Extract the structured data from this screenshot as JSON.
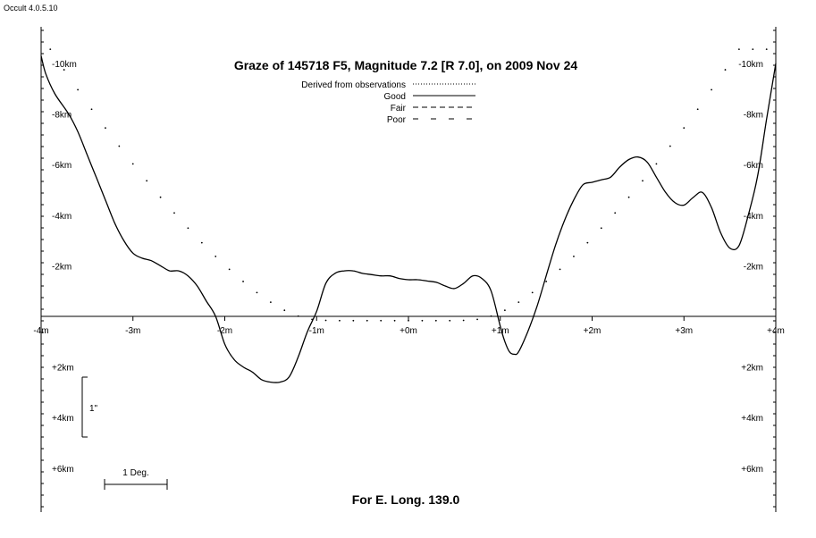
{
  "app": {
    "version_label": "Occult 4.0.5.10"
  },
  "chart_data": {
    "type": "line",
    "title": "Graze of  145718 F5,  Magnitude 7.2 [R 7.0],  on 2009 Nov 24",
    "footer": "For E. Long. 139.0",
    "x_unit": "arcmin",
    "y_unit": "km",
    "xlim": [
      -4,
      4
    ],
    "ylim": [
      -10.5,
      7.5
    ],
    "y_positive_is_down": true,
    "grid": false,
    "x_ticks": [
      {
        "value": -4,
        "label": "-4m"
      },
      {
        "value": -3,
        "label": "-3m"
      },
      {
        "value": -2,
        "label": "-2m"
      },
      {
        "value": -1,
        "label": "-1m"
      },
      {
        "value": 0,
        "label": "+0m"
      },
      {
        "value": 1,
        "label": "+1m"
      },
      {
        "value": 2,
        "label": "+2m"
      },
      {
        "value": 3,
        "label": "+3m"
      },
      {
        "value": 4,
        "label": "+4m"
      }
    ],
    "y_ticks": [
      {
        "value": -10,
        "label": "-10km"
      },
      {
        "value": -8,
        "label": "-8km"
      },
      {
        "value": -6,
        "label": "-6km"
      },
      {
        "value": -4,
        "label": "-4km"
      },
      {
        "value": -2,
        "label": "-2km"
      },
      {
        "value": 2,
        "label": "+2km"
      },
      {
        "value": 4,
        "label": "+4km"
      },
      {
        "value": 6,
        "label": "+6km"
      }
    ],
    "legend": {
      "placement": "top-center",
      "entries": [
        {
          "label": "Derived from observations",
          "style": "dotted"
        },
        {
          "label": "Good",
          "style": "solid"
        },
        {
          "label": "Fair",
          "style": "dashed"
        },
        {
          "label": "Poor",
          "style": "long-dashed"
        }
      ]
    },
    "scale_bars": {
      "vertical_label": "1\"",
      "horizontal_label": "1 Deg."
    },
    "series": [
      {
        "name": "Good",
        "style": "solid",
        "x": [
          -4.0,
          -3.95,
          -3.85,
          -3.7,
          -3.6,
          -3.5,
          -3.4,
          -3.3,
          -3.2,
          -3.1,
          -3.0,
          -2.9,
          -2.8,
          -2.7,
          -2.6,
          -2.5,
          -2.4,
          -2.3,
          -2.2,
          -2.1,
          -2.0,
          -1.9,
          -1.8,
          -1.7,
          -1.6,
          -1.5,
          -1.4,
          -1.3,
          -1.2,
          -1.1,
          -1.0,
          -0.9,
          -0.8,
          -0.7,
          -0.6,
          -0.5,
          -0.4,
          -0.3,
          -0.2,
          -0.1,
          0.0,
          0.1,
          0.2,
          0.3,
          0.4,
          0.5,
          0.6,
          0.7,
          0.8,
          0.9,
          1.0,
          1.05,
          1.1,
          1.15,
          1.2,
          1.3,
          1.4,
          1.5,
          1.6,
          1.7,
          1.8,
          1.9,
          2.0,
          2.1,
          2.2,
          2.3,
          2.4,
          2.5,
          2.6,
          2.7,
          2.8,
          2.9,
          3.0,
          3.1,
          3.2,
          3.3,
          3.4,
          3.5,
          3.6,
          3.7,
          3.8,
          3.9,
          4.0
        ],
        "y": [
          -10.3,
          -9.6,
          -8.8,
          -8.0,
          -7.3,
          -6.4,
          -5.5,
          -4.6,
          -3.7,
          -3.0,
          -2.5,
          -2.3,
          -2.2,
          -2.0,
          -1.8,
          -1.8,
          -1.6,
          -1.2,
          -0.6,
          0.0,
          1.1,
          1.7,
          2.0,
          2.2,
          2.5,
          2.6,
          2.6,
          2.4,
          1.6,
          0.6,
          -0.2,
          -1.3,
          -1.7,
          -1.8,
          -1.8,
          -1.7,
          -1.65,
          -1.6,
          -1.6,
          -1.5,
          -1.45,
          -1.45,
          -1.4,
          -1.35,
          -1.2,
          -1.1,
          -1.3,
          -1.6,
          -1.5,
          -1.0,
          0.4,
          1.0,
          1.4,
          1.5,
          1.4,
          0.6,
          -0.4,
          -1.6,
          -2.8,
          -3.8,
          -4.6,
          -5.2,
          -5.3,
          -5.4,
          -5.5,
          -5.9,
          -6.2,
          -6.3,
          -6.1,
          -5.5,
          -4.9,
          -4.5,
          -4.4,
          -4.7,
          -4.9,
          -4.3,
          -3.3,
          -2.7,
          -2.8,
          -4.0,
          -5.5,
          -7.8,
          -10.0
        ]
      },
      {
        "name": "Derived from observations",
        "style": "dotted",
        "x": [
          -3.9,
          -3.75,
          -3.6,
          -3.45,
          -3.3,
          -3.15,
          -3.0,
          -2.85,
          -2.7,
          -2.55,
          -2.4,
          -2.25,
          -2.1,
          -1.95,
          -1.8,
          -1.65,
          -1.5,
          -1.35,
          -1.2,
          -1.05,
          -0.9,
          -0.75,
          -0.6,
          -0.45,
          -0.3,
          -0.15,
          0.0,
          0.15,
          0.3,
          0.45,
          0.6,
          0.75,
          0.9,
          1.05,
          1.2,
          1.35,
          1.5,
          1.65,
          1.8,
          1.95,
          2.1,
          2.25,
          2.4,
          2.55,
          2.7,
          2.85,
          3.0,
          3.15,
          3.3,
          3.45,
          3.6,
          3.75,
          3.9
        ],
        "y": [
          -10.56,
          -9.75,
          -8.96,
          -8.19,
          -7.45,
          -6.73,
          -6.03,
          -5.36,
          -4.71,
          -4.09,
          -3.49,
          -2.91,
          -2.37,
          -1.86,
          -1.38,
          -0.94,
          -0.56,
          -0.24,
          -0.01,
          0.12,
          0.16,
          0.17,
          0.17,
          0.17,
          0.17,
          0.17,
          0.17,
          0.17,
          0.17,
          0.17,
          0.16,
          0.12,
          -0.01,
          -0.24,
          -0.56,
          -0.94,
          -1.38,
          -1.86,
          -2.37,
          -2.91,
          -3.49,
          -4.09,
          -4.71,
          -5.36,
          -6.03,
          -6.73,
          -7.45,
          -8.19,
          -8.96,
          -9.75,
          -10.56,
          -10.56,
          -10.56
        ]
      }
    ]
  }
}
